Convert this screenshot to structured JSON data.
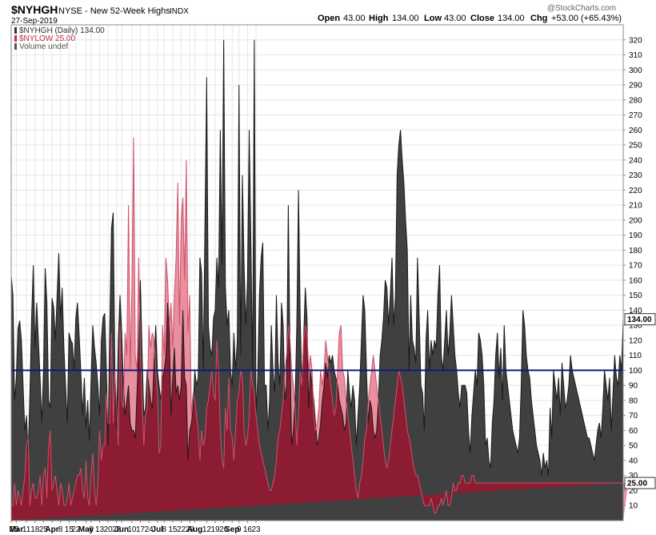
{
  "header": {
    "symbol": "$NYHGH",
    "description": "NYSE - New 52-Week Highs",
    "exchange": "INDX",
    "date": "27-Sep-2019",
    "watermark": "@StockCharts.com",
    "ohlc": {
      "open_label": "Open",
      "open": "43.00",
      "high_label": "High",
      "high": "134.00",
      "low_label": "Low",
      "low": "43.00",
      "close_label": "Close",
      "close": "134.00",
      "chg_label": "Chg",
      "chg": "+53.00 (+65.43%)"
    }
  },
  "legend": [
    {
      "text": "$NYHGH (Daily) 134.00",
      "color": "#333333"
    },
    {
      "text": "$NYLOW 25.00",
      "color": "#c0304a"
    },
    {
      "text": "Volume undef",
      "color": "#555555"
    }
  ],
  "colors": {
    "highs_fill": "#404040",
    "highs_line": "#1a1a1a",
    "lows_fill_overlap": "#8b1c32",
    "lows_fill_exposed": "#e8909f",
    "lows_line": "#d0506a",
    "reference_line": "#0a1a80",
    "grid": "#e6e6e6"
  },
  "chart_data": {
    "type": "area",
    "ylim": [
      0,
      330
    ],
    "yticks": [
      10,
      20,
      30,
      40,
      50,
      60,
      70,
      80,
      90,
      100,
      110,
      120,
      130,
      140,
      150,
      160,
      170,
      180,
      190,
      200,
      210,
      220,
      230,
      240,
      250,
      260,
      270,
      280,
      290,
      300,
      310,
      320
    ],
    "reference_line": 100,
    "last_values": {
      "highs": "134.00",
      "lows": "25.00"
    },
    "x_ticks": [
      {
        "label": "25",
        "i": 0
      },
      {
        "label": "Mar",
        "i": 3,
        "bold": true
      },
      {
        "label": "11",
        "i": 9
      },
      {
        "label": "18",
        "i": 14
      },
      {
        "label": "25",
        "i": 19
      },
      {
        "label": "Apr",
        "i": 24,
        "bold": true
      },
      {
        "label": "8",
        "i": 29
      },
      {
        "label": "15",
        "i": 34
      },
      {
        "label": "22",
        "i": 38
      },
      {
        "label": "May",
        "i": 44,
        "bold": true
      },
      {
        "label": "6",
        "i": 47
      },
      {
        "label": "13",
        "i": 52
      },
      {
        "label": "20",
        "i": 57
      },
      {
        "label": "28",
        "i": 62
      },
      {
        "label": "Jun",
        "i": 65,
        "bold": true
      },
      {
        "label": "10",
        "i": 71
      },
      {
        "label": "17",
        "i": 76
      },
      {
        "label": "24",
        "i": 81
      },
      {
        "label": "Jul",
        "i": 86,
        "bold": true
      },
      {
        "label": "8",
        "i": 90
      },
      {
        "label": "15",
        "i": 95
      },
      {
        "label": "22",
        "i": 100
      },
      {
        "label": "29",
        "i": 105
      },
      {
        "label": "Aug",
        "i": 108,
        "bold": true
      },
      {
        "label": "12",
        "i": 115
      },
      {
        "label": "19",
        "i": 120
      },
      {
        "label": "26",
        "i": 125
      },
      {
        "label": "Sep",
        "i": 130,
        "bold": true
      },
      {
        "label": "9",
        "i": 134
      },
      {
        "label": "16",
        "i": 139
      },
      {
        "label": "23",
        "i": 144
      }
    ],
    "series": [
      {
        "name": "$NYHGH",
        "values": [
          163,
          150,
          80,
          95,
          128,
          133,
          120,
          90,
          60,
          70,
          45,
          85,
          135,
          170,
          115,
          145,
          120,
          95,
          65,
          100,
          168,
          145,
          80,
          75,
          148,
          142,
          120,
          150,
          178,
          135,
          155,
          115,
          90,
          65,
          125,
          120,
          118,
          100,
          135,
          145,
          123,
          98,
          70,
          95,
          62,
          80,
          53,
          95,
          130,
          115,
          105,
          90,
          70,
          120,
          135,
          138,
          100,
          50,
          130,
          195,
          205,
          100,
          60,
          120,
          150,
          125,
          90,
          70,
          80,
          90,
          65,
          60,
          60,
          55,
          85,
          115,
          160,
          110,
          70,
          75,
          100,
          90,
          80,
          75,
          105,
          130,
          100,
          90,
          80,
          95,
          100,
          110,
          145,
          125,
          70,
          95,
          115,
          85,
          90,
          80,
          90,
          140,
          95,
          90,
          40,
          60,
          65,
          75,
          100,
          90,
          95,
          175,
          165,
          100,
          200,
          295,
          130,
          115,
          110,
          135,
          140,
          175,
          155,
          260,
          170,
          320,
          155,
          130,
          140,
          100,
          90,
          125,
          100,
          120,
          290,
          110,
          230,
          170,
          130,
          160,
          260,
          185,
          100,
          320,
          70,
          95,
          150,
          175,
          185,
          90,
          90,
          60,
          80,
          130,
          100,
          85,
          150,
          105,
          90,
          145,
          130,
          80,
          90,
          210,
          110,
          50,
          60,
          80,
          130,
          220,
          135,
          90,
          120,
          155,
          135,
          75,
          100,
          90,
          80,
          65,
          50,
          55,
          65,
          80,
          90,
          105,
          95,
          110,
          105,
          110,
          100,
          95,
          90,
          80,
          75,
          70,
          60,
          65,
          100,
          85,
          75,
          90,
          80,
          50,
          70,
          90,
          120,
          150,
          140,
          100,
          65,
          80,
          75,
          60,
          55,
          60,
          80,
          110,
          120,
          135,
          160,
          155,
          130,
          150,
          175,
          130,
          150,
          230,
          250,
          260,
          240,
          225,
          200,
          180,
          100,
          150,
          120,
          115,
          105,
          175,
          135,
          90,
          85,
          60,
          120,
          140,
          100,
          120,
          110,
          120,
          115,
          150,
          170,
          110,
          100,
          120,
          140,
          110,
          125,
          150,
          130,
          110,
          100,
          85,
          75,
          90,
          90,
          90,
          85,
          60,
          45,
          70,
          85,
          100,
          90,
          125,
          120,
          110,
          90,
          50,
          55,
          40,
          35,
          65,
          80,
          110,
          125,
          95,
          115,
          80,
          130,
          100,
          90,
          80,
          70,
          60,
          55,
          50,
          45,
          55,
          90,
          140,
          130,
          110,
          100,
          95,
          80,
          70,
          60,
          50,
          45,
          40,
          30,
          45,
          35,
          40,
          30,
          75,
          55,
          100,
          90,
          80,
          95,
          70,
          105,
          90,
          75,
          80,
          90,
          110,
          100,
          95,
          90,
          85,
          80,
          75,
          70,
          65,
          60,
          55,
          55,
          50,
          45,
          40,
          50,
          60,
          65,
          55,
          75,
          100,
          90,
          80,
          95,
          60,
          85,
          110,
          95,
          90,
          110,
          100,
          134
        ]
      },
      {
        "name": "$NYLOW",
        "values": [
          10,
          10,
          25,
          10,
          20,
          15,
          10,
          20,
          30,
          50,
          55,
          10,
          20,
          25,
          15,
          15,
          20,
          30,
          10,
          30,
          35,
          15,
          50,
          60,
          20,
          25,
          30,
          20,
          10,
          25,
          20,
          10,
          10,
          15,
          25,
          10,
          15,
          20,
          25,
          30,
          30,
          35,
          20,
          15,
          40,
          15,
          10,
          30,
          45,
          20,
          10,
          25,
          60,
          40,
          50,
          50,
          85,
          65,
          65,
          125,
          65,
          100,
          75,
          50,
          130,
          80,
          75,
          125,
          110,
          210,
          100,
          155,
          255,
          110,
          100,
          175,
          110,
          80,
          50,
          70,
          75,
          130,
          115,
          125,
          120,
          100,
          85,
          45,
          50,
          130,
          110,
          175,
          160,
          130,
          145,
          115,
          150,
          175,
          225,
          130,
          200,
          215,
          160,
          240,
          125,
          150,
          70,
          85,
          80,
          70,
          60,
          40,
          60,
          50,
          55,
          75,
          80,
          90,
          100,
          85,
          80,
          120,
          100,
          60,
          40,
          35,
          75,
          60,
          95,
          60,
          55,
          40,
          60,
          80,
          85,
          100,
          95,
          60,
          50,
          55,
          70,
          100,
          90,
          85,
          70,
          60,
          50,
          45,
          40,
          35,
          30,
          25,
          20,
          20,
          25,
          30,
          40,
          55,
          60,
          70,
          80,
          100,
          110,
          130,
          120,
          100,
          90,
          75,
          50,
          70,
          100,
          90,
          120,
          130,
          125,
          100,
          110,
          100,
          70,
          60,
          65,
          75,
          100,
          90,
          100,
          120,
          110,
          100,
          90,
          80,
          70,
          75,
          100,
          125,
          130,
          100,
          95,
          80,
          70,
          60,
          50,
          40,
          30,
          20,
          15,
          25,
          30,
          40,
          55,
          60,
          80,
          90,
          100,
          110,
          100,
          90,
          80,
          70,
          60,
          50,
          40,
          35,
          40,
          50,
          60,
          70,
          80,
          90,
          100,
          95,
          90,
          80,
          70,
          60,
          55,
          50,
          40,
          35,
          30,
          30,
          25,
          20,
          15,
          10,
          10,
          10,
          10,
          15,
          10,
          5,
          5,
          10,
          10,
          15,
          10,
          15,
          20,
          10,
          10,
          15,
          25,
          20,
          20,
          25,
          25,
          30,
          30,
          25,
          25,
          25,
          25,
          30,
          30,
          25,
          25,
          25,
          25,
          25,
          25,
          25,
          25,
          25,
          25,
          25,
          25,
          25,
          25,
          25,
          25,
          25,
          25,
          25,
          25,
          25,
          25,
          25,
          25,
          25,
          25,
          25,
          25,
          25,
          25,
          25,
          25,
          25,
          25,
          25,
          25,
          25,
          25,
          25,
          25,
          25,
          25,
          25,
          25,
          25,
          25,
          25,
          25,
          25,
          25,
          25,
          25,
          25,
          25,
          25,
          25,
          25,
          25,
          25,
          25,
          25,
          25,
          25,
          25,
          25,
          25,
          25,
          25,
          25,
          25,
          25,
          25,
          25,
          25,
          25,
          25,
          25,
          25,
          25,
          25,
          25,
          25,
          25,
          25,
          25,
          25,
          25,
          25,
          25,
          25,
          25
        ]
      }
    ]
  }
}
